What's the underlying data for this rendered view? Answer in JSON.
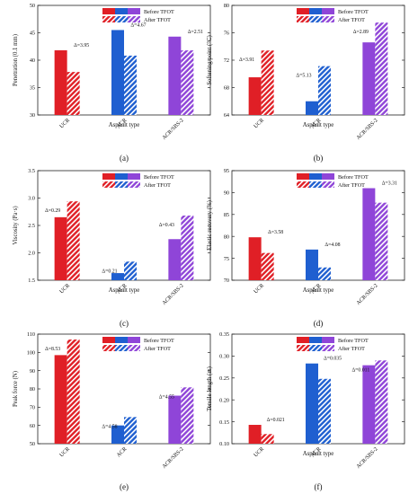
{
  "legend": {
    "before_label": "Before TFOT",
    "after_label": "After TFOT"
  },
  "colors": {
    "UCR": "#e01f26",
    "ACR": "#1f5fd0",
    "ACR/SBS-2": "#8f45d8"
  },
  "chart_data": [
    {
      "type": "bar",
      "panel_label": "(a)",
      "categories": [
        "UCR",
        "ACR",
        "ACR/SBS-2"
      ],
      "series": [
        {
          "name": "Before TFOT",
          "values": [
            41.8,
            45.5,
            44.3
          ]
        },
        {
          "name": "After TFOT",
          "values": [
            37.85,
            40.83,
            41.79
          ]
        }
      ],
      "annotations": [
        "Δ=3.95",
        "Δ=4.67",
        "Δ=2.51"
      ],
      "xlabel": "Asphalt type",
      "ylabel": "Penetration (0.1 mm)",
      "ylim": [
        30,
        50
      ],
      "yticks": [
        30,
        35,
        40,
        45,
        50
      ],
      "ytick_labels": [
        "30",
        "35",
        "40",
        "45",
        "50"
      ]
    },
    {
      "type": "bar",
      "panel_label": "(b)",
      "categories": [
        "UCR",
        "ACR",
        "ACR/SBS-2"
      ],
      "series": [
        {
          "name": "Before TFOT",
          "values": [
            69.5,
            66.0,
            74.6
          ]
        },
        {
          "name": "After TFOT",
          "values": [
            73.41,
            71.13,
            77.49
          ]
        }
      ],
      "annotations": [
        "Δ=3.91",
        "Δ=5.13",
        "Δ=2.89"
      ],
      "xlabel": "Asphalt type",
      "ylabel": "Softening point (°C)",
      "ylim": [
        64,
        80
      ],
      "yticks": [
        64,
        68,
        72,
        76,
        80
      ],
      "ytick_labels": [
        "64",
        "68",
        "72",
        "76",
        "80"
      ]
    },
    {
      "type": "bar",
      "panel_label": "(c)",
      "categories": [
        "UCR",
        "ACR",
        "ACR/SBS-2"
      ],
      "series": [
        {
          "name": "Before TFOT",
          "values": [
            2.65,
            1.63,
            2.25
          ]
        },
        {
          "name": "After TFOT",
          "values": [
            2.94,
            1.84,
            2.68
          ]
        }
      ],
      "annotations": [
        "Δ=0.29",
        "Δ=0.21",
        "Δ=0.43"
      ],
      "xlabel": "Asphalt type",
      "ylabel": "Viscosity (Pa·s)",
      "ylim": [
        1.5,
        3.5
      ],
      "yticks": [
        1.5,
        2.0,
        2.5,
        3.0,
        3.5
      ],
      "ytick_labels": [
        "1.5",
        "2.0",
        "2.5",
        "3.0",
        "3.5"
      ]
    },
    {
      "type": "bar",
      "panel_label": "(d)",
      "categories": [
        "UCR",
        "ACR",
        "ACR/SBS-2"
      ],
      "series": [
        {
          "name": "Before TFOT",
          "values": [
            79.8,
            77.0,
            91.0
          ]
        },
        {
          "name": "After TFOT",
          "values": [
            76.22,
            72.92,
            87.69
          ]
        }
      ],
      "annotations": [
        "Δ=3.58",
        "Δ=4.08",
        "Δ=3.31"
      ],
      "xlabel": "Asphalt type",
      "ylabel": "Elastic recovery (%)",
      "ylim": [
        70,
        95
      ],
      "yticks": [
        70,
        75,
        80,
        85,
        90,
        95
      ],
      "ytick_labels": [
        "70",
        "75",
        "80",
        "85",
        "90",
        "95"
      ]
    },
    {
      "type": "bar",
      "panel_label": "(e)",
      "categories": [
        "UCR",
        "ACR",
        "ACR/SBS-2"
      ],
      "series": [
        {
          "name": "Before TFOT",
          "values": [
            98.5,
            60.0,
            76.3
          ]
        },
        {
          "name": "After TFOT",
          "values": [
            107.03,
            64.58,
            80.85
          ]
        }
      ],
      "annotations": [
        "Δ=8.53",
        "Δ=4.58",
        "Δ=4.55"
      ],
      "xlabel": "",
      "ylabel": "Peak force (N)",
      "ylim": [
        50,
        110
      ],
      "yticks": [
        50,
        60,
        70,
        80,
        90,
        100,
        110
      ],
      "ytick_labels": [
        "50",
        "60",
        "70",
        "80",
        "90",
        "100",
        "110"
      ]
    },
    {
      "type": "bar",
      "panel_label": "(f)",
      "categories": [
        "UCR",
        "ACR",
        "ACR/SBS-2"
      ],
      "series": [
        {
          "name": "Before TFOT",
          "values": [
            0.143,
            0.283,
            0.279
          ]
        },
        {
          "name": "After TFOT",
          "values": [
            0.122,
            0.248,
            0.29
          ]
        }
      ],
      "annotations": [
        "Δ=0.021",
        "Δ=0.035",
        "Δ=0.011"
      ],
      "xlabel": "Asphalt type",
      "ylabel": "Tensile length (m)",
      "ylim": [
        0.1,
        0.35
      ],
      "yticks": [
        0.1,
        0.15,
        0.2,
        0.25,
        0.3,
        0.35
      ],
      "ytick_labels": [
        "0.10",
        "0.15",
        "0.20",
        "0.25",
        "0.30",
        "0.35"
      ]
    }
  ]
}
